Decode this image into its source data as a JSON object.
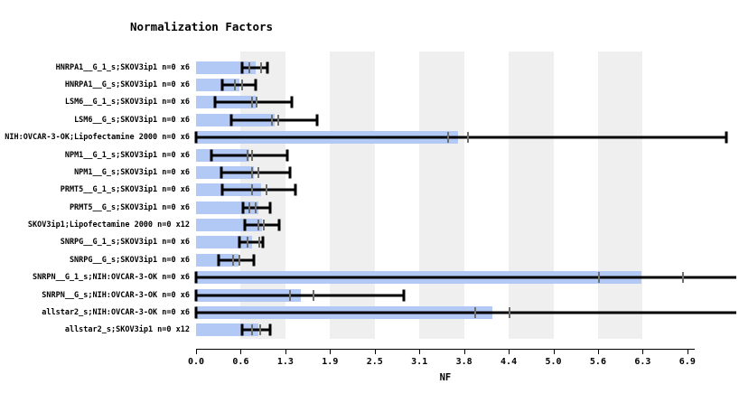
{
  "chart_data": {
    "type": "bar",
    "orientation": "horizontal",
    "title": "Normalization Factors",
    "xlabel": "NF",
    "ylabel": "",
    "xlim": [
      0,
      7.52
    ],
    "grid": "alternating-vertical-bands",
    "legend": "none",
    "axis_ticks": {
      "values": [
        0,
        0.625,
        1.25,
        1.875,
        2.5,
        3.125,
        3.75,
        4.375,
        5.0,
        5.625,
        6.25,
        6.875
      ],
      "labels": [
        "0.0",
        "0.6",
        "1.3",
        "1.9",
        "2.5",
        "3.1",
        "3.8",
        "4.4",
        "5.0",
        "5.6",
        "6.3",
        "6.9"
      ]
    },
    "rows": [
      {
        "label": "HNRPA1__G_1_s;SKOV3ip1 n=0 x6",
        "value": 0.84,
        "err_low": 0.65,
        "err_high": 1.0,
        "clipped": false,
        "inner_ticks": [
          0.75,
          0.91
        ]
      },
      {
        "label": "HNRPA1__G_s;SKOV3ip1 n=0 x6",
        "value": 0.61,
        "err_low": 0.37,
        "err_high": 0.83,
        "clipped": false,
        "inner_ticks": [
          0.54,
          0.65
        ]
      },
      {
        "label": "LSM6__G_1_s;SKOV3ip1 n=0 x6",
        "value": 0.84,
        "err_low": 0.27,
        "err_high": 1.34,
        "clipped": false,
        "inner_ticks": [
          0.78,
          0.85
        ]
      },
      {
        "label": "LSM6__G_s;SKOV3ip1 n=0 x6",
        "value": 1.1,
        "err_low": 0.49,
        "err_high": 1.7,
        "clipped": false,
        "inner_ticks": [
          1.06,
          1.15
        ]
      },
      {
        "label": "NIH:OVCAR-3-OK;Lipofectamine 2000 n=0 x6",
        "value": 3.67,
        "err_low": 0.0,
        "err_high": 7.42,
        "clipped": false,
        "inner_ticks": [
          3.53,
          3.81
        ]
      },
      {
        "label": "NPM1__G_1_s;SKOV3ip1 n=0 x6",
        "value": 0.75,
        "err_low": 0.21,
        "err_high": 1.28,
        "clipped": false,
        "inner_ticks": [
          0.72,
          0.79
        ]
      },
      {
        "label": "NPM1__G_s;SKOV3ip1 n=0 x6",
        "value": 0.81,
        "err_low": 0.35,
        "err_high": 1.31,
        "clipped": false,
        "inner_ticks": [
          0.79,
          0.87
        ]
      },
      {
        "label": "PRMT5__G_1_s;SKOV3ip1 n=0 x6",
        "value": 0.91,
        "err_low": 0.37,
        "err_high": 1.39,
        "clipped": false,
        "inner_ticks": [
          0.79,
          0.98
        ]
      },
      {
        "label": "PRMT5__G_s;SKOV3ip1 n=0 x6",
        "value": 0.87,
        "err_low": 0.66,
        "err_high": 1.04,
        "clipped": false,
        "inner_ticks": [
          0.74,
          0.84
        ]
      },
      {
        "label": "SKOV3ip1;Lipofectamine 2000 n=0 x12",
        "value": 0.92,
        "err_low": 0.68,
        "err_high": 1.16,
        "clipped": false,
        "inner_ticks": [
          0.87,
          0.95
        ]
      },
      {
        "label": "SNRPG__G_1_s;SKOV3ip1 n=0 x6",
        "value": 0.79,
        "err_low": 0.61,
        "err_high": 0.94,
        "clipped": false,
        "inner_ticks": [
          0.72,
          0.88
        ]
      },
      {
        "label": "SNRPG__G_s;SKOV3ip1 n=0 x6",
        "value": 0.59,
        "err_low": 0.32,
        "err_high": 0.81,
        "clipped": false,
        "inner_ticks": [
          0.52,
          0.61
        ]
      },
      {
        "label": "SNRPN__G_1_s;NIH:OVCAR-3-OK n=0 x6",
        "value": 6.23,
        "err_low": 0.0,
        "err_high": null,
        "clipped": true,
        "inner_ticks": [
          5.64,
          6.82
        ]
      },
      {
        "label": "SNRPN__G_s;NIH:OVCAR-3-OK n=0 x6",
        "value": 1.47,
        "err_low": 0.0,
        "err_high": 2.91,
        "clipped": false,
        "inner_ticks": [
          1.32,
          1.64
        ]
      },
      {
        "label": "allstar2_s;NIH:OVCAR-3-OK n=0 x6",
        "value": 4.15,
        "err_low": 0.0,
        "err_high": null,
        "clipped": true,
        "inner_ticks": [
          3.91,
          4.39
        ]
      },
      {
        "label": "allstar2_s;SKOV3ip1 n=0 x12",
        "value": 0.87,
        "err_low": 0.65,
        "err_high": 1.04,
        "clipped": false,
        "inner_ticks": [
          0.79,
          0.9
        ]
      }
    ],
    "colors": {
      "bar_fill": "#b2c8f5",
      "band_fill": "#efefef",
      "error_bar": "#000000",
      "inner_tick": "#707070",
      "text": "#000000",
      "background": "#ffffff"
    }
  }
}
